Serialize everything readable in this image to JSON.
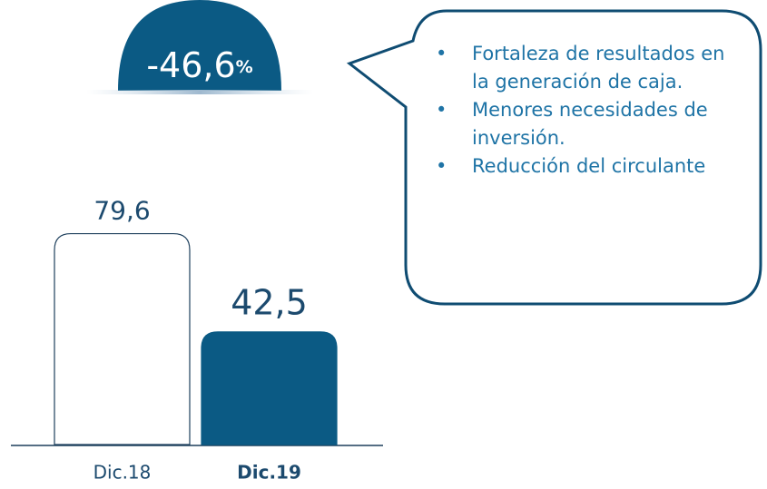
{
  "chart_data": {
    "type": "bar",
    "categories": [
      "Dic.18",
      "Dic.19"
    ],
    "values": [
      79.6,
      42.5
    ],
    "value_labels": [
      "79,6",
      "42,5"
    ],
    "colors": [
      "#ffffff",
      "#0b5a84"
    ],
    "change_label": "-46,6",
    "change_unit": "%",
    "notes": [
      "Fortaleza de resultados en la generación de caja.",
      "Menores necesidades de inversión.",
      "Reducción del circulante"
    ]
  }
}
